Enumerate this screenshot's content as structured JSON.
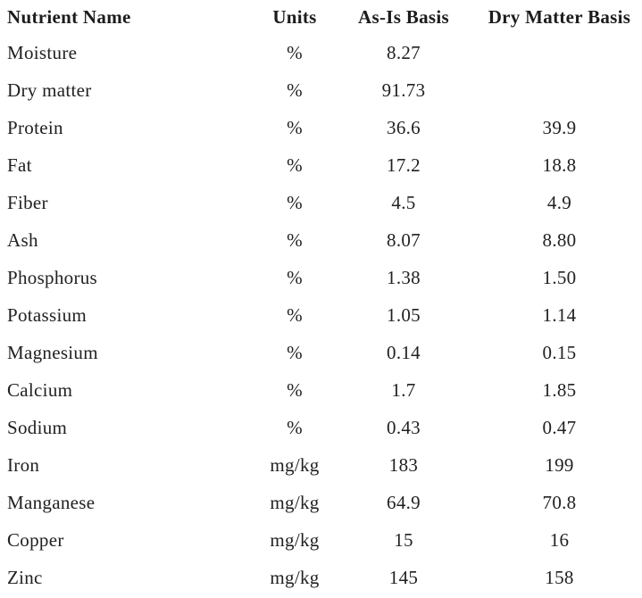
{
  "table": {
    "columns": [
      "Nutrient Name",
      "Units",
      "As-Is Basis",
      "Dry Matter Basis"
    ],
    "rows": [
      {
        "name": "Moisture",
        "units": "%",
        "as_is": "8.27",
        "dry_matter": ""
      },
      {
        "name": "Dry matter",
        "units": "%",
        "as_is": "91.73",
        "dry_matter": ""
      },
      {
        "name": "Protein",
        "units": "%",
        "as_is": "36.6",
        "dry_matter": "39.9"
      },
      {
        "name": "Fat",
        "units": "%",
        "as_is": "17.2",
        "dry_matter": "18.8"
      },
      {
        "name": "Fiber",
        "units": "%",
        "as_is": "4.5",
        "dry_matter": "4.9"
      },
      {
        "name": "Ash",
        "units": "%",
        "as_is": "8.07",
        "dry_matter": "8.80"
      },
      {
        "name": "Phosphorus",
        "units": "%",
        "as_is": "1.38",
        "dry_matter": "1.50"
      },
      {
        "name": "Potassium",
        "units": "%",
        "as_is": "1.05",
        "dry_matter": "1.14"
      },
      {
        "name": "Magnesium",
        "units": "%",
        "as_is": "0.14",
        "dry_matter": "0.15"
      },
      {
        "name": "Calcium",
        "units": "%",
        "as_is": "1.7",
        "dry_matter": "1.85"
      },
      {
        "name": "Sodium",
        "units": "%",
        "as_is": "0.43",
        "dry_matter": "0.47"
      },
      {
        "name": "Iron",
        "units": "mg/kg",
        "as_is": "183",
        "dry_matter": "199"
      },
      {
        "name": "Manganese",
        "units": "mg/kg",
        "as_is": "64.9",
        "dry_matter": "70.8"
      },
      {
        "name": "Copper",
        "units": "mg/kg",
        "as_is": "15",
        "dry_matter": "16"
      },
      {
        "name": "Zinc",
        "units": "mg/kg",
        "as_is": "145",
        "dry_matter": "158"
      }
    ],
    "text_color": "#212121",
    "background_color": "#ffffff"
  }
}
